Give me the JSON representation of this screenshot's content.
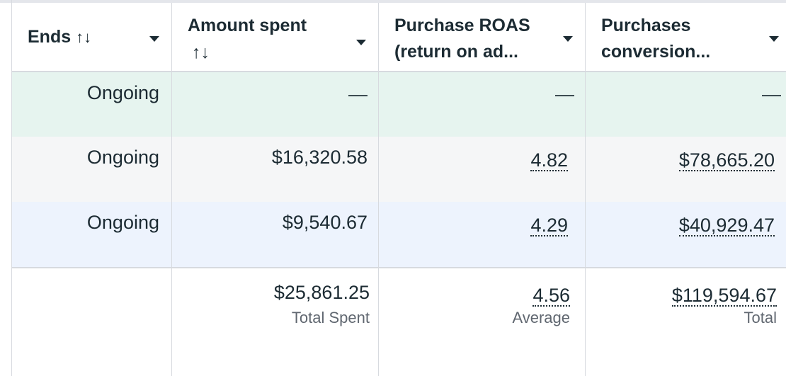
{
  "columns": {
    "ends": {
      "title": "Ends",
      "sort_icon": "↑↓"
    },
    "amount_spent": {
      "title_line1": "Amount spent",
      "sort_icon": "↑↓"
    },
    "purchase_roas": {
      "title_line1": "Purchase ROAS",
      "title_line2": "(return on ad..."
    },
    "purchases_conv": {
      "title_line1": "Purchases",
      "title_line2": "conversion..."
    }
  },
  "rows": [
    {
      "ends": "Ongoing",
      "amount_spent": "—",
      "purchase_roas": "—",
      "purchases_conversion": "—"
    },
    {
      "ends": "Ongoing",
      "amount_spent": "$16,320.58",
      "purchase_roas": "4.82",
      "purchases_conversion": "$78,665.20"
    },
    {
      "ends": "Ongoing",
      "amount_spent": "$9,540.67",
      "purchase_roas": "4.29",
      "purchases_conversion": "$40,929.47"
    }
  ],
  "totals": {
    "amount_spent": "$25,861.25",
    "amount_spent_label": "Total Spent",
    "purchase_roas": "4.56",
    "purchase_roas_label": "Average",
    "purchases_conversion": "$119,594.67",
    "purchases_conversion_label": "Total"
  },
  "colors": {
    "row_highlight_green": "#e6f4ef",
    "row_gray": "#f5f6f7",
    "row_blue": "#edf3fd",
    "text": "#1c2b33",
    "subtext": "#606770",
    "border": "#d7dadf"
  }
}
